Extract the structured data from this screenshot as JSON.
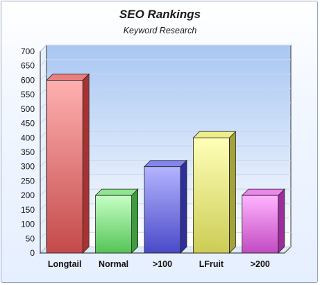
{
  "chart_data": {
    "type": "bar",
    "title": "SEO Rankings",
    "subtitle": "Keyword Research",
    "xlabel": "",
    "ylabel": "",
    "categories": [
      "Longtail",
      "Normal",
      ">100",
      "LFruit",
      ">200"
    ],
    "values": [
      600,
      200,
      300,
      400,
      200
    ],
    "ylim": [
      0,
      700
    ],
    "yticks": [
      0,
      50,
      100,
      150,
      200,
      250,
      300,
      350,
      400,
      450,
      500,
      550,
      600,
      650,
      700
    ],
    "grid": true,
    "legend": "none",
    "bar_colors": [
      {
        "top": "#ffb0b0",
        "bottom": "#c44a4a",
        "side": "#a83232",
        "cap": "#e88080"
      },
      {
        "top": "#c6ffc6",
        "bottom": "#55c455",
        "side": "#3d9c3d",
        "cap": "#8ee68e"
      },
      {
        "top": "#b4b4ff",
        "bottom": "#4a4ac8",
        "side": "#2f2f9a",
        "cap": "#8484ee"
      },
      {
        "top": "#ffffb8",
        "bottom": "#cccc55",
        "side": "#a3a33a",
        "cap": "#eeee88"
      },
      {
        "top": "#ffb4ff",
        "bottom": "#c24ac2",
        "side": "#9a2f9a",
        "cap": "#ee84ee"
      }
    ],
    "background_colors": {
      "plot_top": "#a9c7f3",
      "plot_bottom": "#ffffff"
    }
  }
}
